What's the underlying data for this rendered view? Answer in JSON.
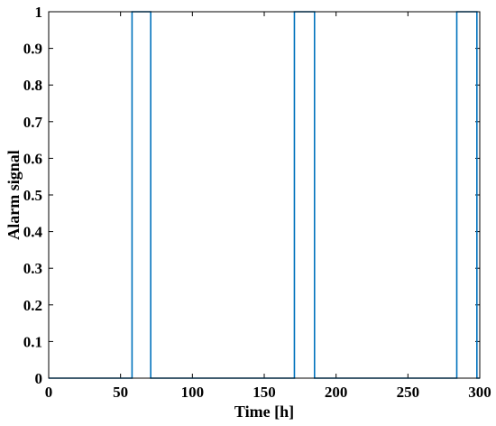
{
  "chart_data": {
    "type": "line",
    "title": "",
    "xlabel": "Time [h]",
    "ylabel": "Alarm signal",
    "xlim": [
      0,
      300
    ],
    "ylim": [
      0,
      1
    ],
    "xticks": [
      0,
      50,
      100,
      150,
      200,
      250,
      300
    ],
    "yticks": [
      0,
      0.1,
      0.2,
      0.3,
      0.4,
      0.5,
      0.6,
      0.7,
      0.8,
      0.9,
      1
    ],
    "xtick_labels": [
      "0",
      "50",
      "100",
      "150",
      "200",
      "250",
      "300"
    ],
    "ytick_labels": [
      "0",
      "0.1",
      "0.2",
      "0.3",
      "0.4",
      "0.5",
      "0.6",
      "0.7",
      "0.8",
      "0.9",
      "1"
    ],
    "grid": false,
    "series": [
      {
        "color": "#0072BD",
        "x": [
          0,
          58,
          58,
          71,
          71,
          171,
          171,
          185,
          185,
          284,
          284,
          284,
          284,
          298,
          298,
          300
        ],
        "y": [
          0,
          0,
          1,
          1,
          0,
          0,
          1,
          1,
          0,
          0,
          0.09,
          0,
          1,
          1,
          0,
          0
        ]
      }
    ]
  }
}
